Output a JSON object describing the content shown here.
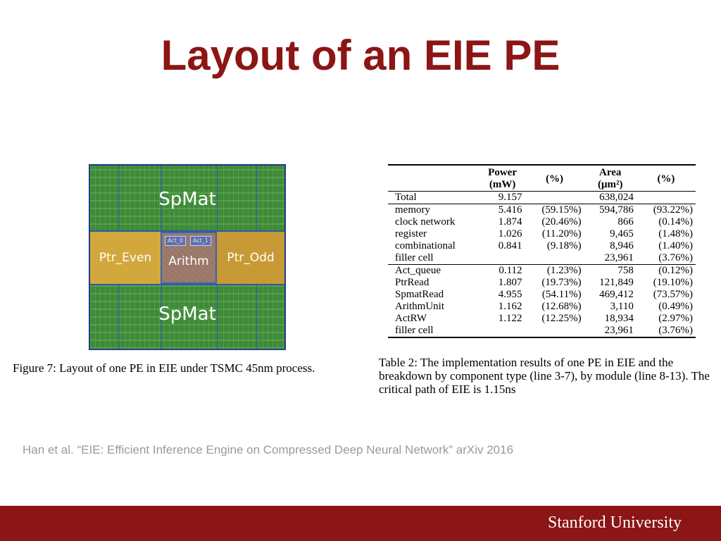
{
  "slide": {
    "title": "Layout of an EIE PE",
    "reference": "Han et al. “EIE: Efficient Inference Engine on Compressed Deep Neural Network” arXiv 2016",
    "brand": "Stanford University"
  },
  "figure": {
    "spmat_top": "SpMat",
    "spmat_bottom": "SpMat",
    "ptr_even": "Ptr_Even",
    "arith": "Arithm",
    "ptr_odd": "Ptr_Odd",
    "act0": "Act_0",
    "act1": "Act_1",
    "caption": "Figure 7: Layout of one PE in EIE under TSMC 45nm process."
  },
  "table": {
    "headers": {
      "power": "Power",
      "power_unit": "(mW)",
      "power_pct": "(%)",
      "area": "Area",
      "area_unit": "(μm²)",
      "area_pct": "(%)"
    },
    "rows": [
      {
        "label": "Total",
        "power": "9.157",
        "power_pct": "",
        "area": "638,024",
        "area_pct": ""
      },
      {
        "label": "memory",
        "power": "5.416",
        "power_pct": "(59.15%)",
        "area": "594,786",
        "area_pct": "(93.22%)"
      },
      {
        "label": "clock network",
        "power": "1.874",
        "power_pct": "(20.46%)",
        "area": "866",
        "area_pct": "(0.14%)"
      },
      {
        "label": "register",
        "power": "1.026",
        "power_pct": "(11.20%)",
        "area": "9,465",
        "area_pct": "(1.48%)"
      },
      {
        "label": "combinational",
        "power": "0.841",
        "power_pct": "(9.18%)",
        "area": "8,946",
        "area_pct": "(1.40%)"
      },
      {
        "label": "filler cell",
        "power": "",
        "power_pct": "",
        "area": "23,961",
        "area_pct": "(3.76%)"
      },
      {
        "label": "Act_queue",
        "power": "0.112",
        "power_pct": "(1.23%)",
        "area": "758",
        "area_pct": "(0.12%)"
      },
      {
        "label": "PtrRead",
        "power": "1.807",
        "power_pct": "(19.73%)",
        "area": "121,849",
        "area_pct": "(19.10%)"
      },
      {
        "label": "SpmatRead",
        "power": "4.955",
        "power_pct": "(54.11%)",
        "area": "469,412",
        "area_pct": "(73.57%)"
      },
      {
        "label": "ArithmUnit",
        "power": "1.162",
        "power_pct": "(12.68%)",
        "area": "3,110",
        "area_pct": "(0.49%)"
      },
      {
        "label": "ActRW",
        "power": "1.122",
        "power_pct": "(12.25%)",
        "area": "18,934",
        "area_pct": "(2.97%)"
      },
      {
        "label": "filler cell",
        "power": "",
        "power_pct": "",
        "area": "23,961",
        "area_pct": "(3.76%)"
      }
    ],
    "caption": "Table 2: The implementation results of one PE in EIE and the breakdown by component type (line 3-7), by module (line 8-13). The critical path of EIE is 1.15ns"
  }
}
